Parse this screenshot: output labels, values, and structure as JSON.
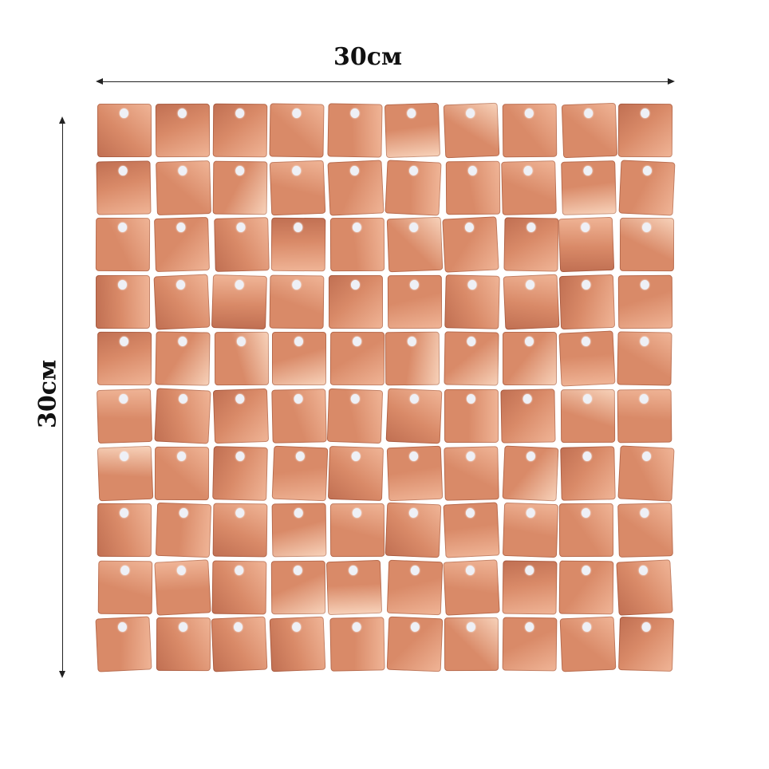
{
  "dimensions": {
    "width_label": "30см",
    "height_label": "30см"
  },
  "panel": {
    "rows": 10,
    "columns": 10,
    "colors": {
      "base": "#d98a68",
      "dark": "#c06f52",
      "light": "#f0b597",
      "highlight": "#f8d3bb"
    }
  }
}
